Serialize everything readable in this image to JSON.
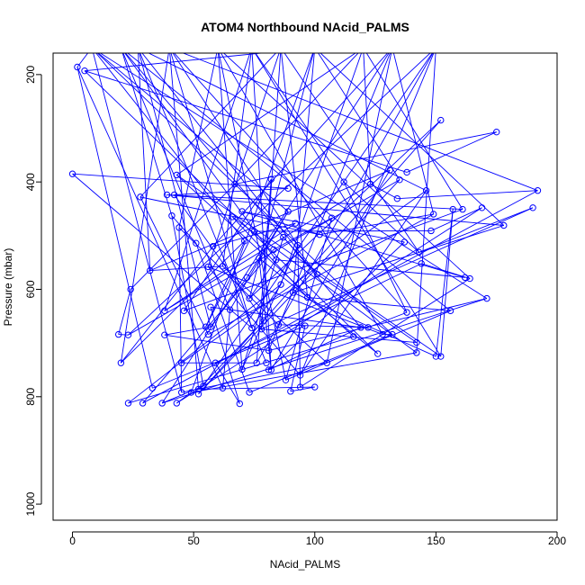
{
  "chart_data": {
    "type": "scatter",
    "title": "ATOM4 Northbound NAcid_PALMS",
    "xlabel": "NAcid_PALMS",
    "ylabel": "Pressure (mbar)",
    "xlim": [
      -8,
      200
    ],
    "ylim": [
      1030,
      160
    ],
    "x_ticks": [
      0,
      50,
      100,
      150,
      200
    ],
    "y_ticks": [
      200,
      400,
      600,
      800,
      1000
    ],
    "x_tick_labels": [
      "0",
      "50",
      "100",
      "150",
      "200"
    ],
    "y_tick_labels": [
      "200",
      "400",
      "600",
      "800",
      "1000"
    ],
    "grid": false,
    "legend": "none",
    "colors": {
      "series": "#0000ff",
      "axis": "#000000",
      "background": "#ffffff"
    },
    "points": [
      [
        2,
        186
      ],
      [
        0,
        385
      ],
      [
        5,
        193
      ],
      [
        19,
        684
      ],
      [
        20,
        737
      ],
      [
        23,
        812
      ],
      [
        23,
        685
      ],
      [
        24,
        600
      ],
      [
        28,
        428
      ],
      [
        29,
        812
      ],
      [
        32,
        565
      ],
      [
        33,
        784
      ],
      [
        37,
        812
      ],
      [
        38,
        685
      ],
      [
        38,
        640
      ],
      [
        39,
        424
      ],
      [
        41,
        463
      ],
      [
        42,
        424
      ],
      [
        43,
        387
      ],
      [
        43,
        812
      ],
      [
        44,
        485
      ],
      [
        45,
        737
      ],
      [
        45,
        792
      ],
      [
        46,
        640
      ],
      [
        49,
        792
      ],
      [
        51,
        514
      ],
      [
        52,
        786
      ],
      [
        52,
        795
      ],
      [
        54,
        780
      ],
      [
        55,
        670
      ],
      [
        56,
        558
      ],
      [
        56,
        684
      ],
      [
        57,
        670
      ],
      [
        57,
        633
      ],
      [
        58,
        520
      ],
      [
        59,
        737
      ],
      [
        62,
        557
      ],
      [
        62,
        784
      ],
      [
        65,
        638
      ],
      [
        66,
        465
      ],
      [
        67,
        404
      ],
      [
        69,
        813
      ],
      [
        70,
        749
      ],
      [
        70,
        455
      ],
      [
        71,
        510
      ],
      [
        72,
        578
      ],
      [
        73,
        617
      ],
      [
        73,
        792
      ],
      [
        74,
        672
      ],
      [
        75,
        492
      ],
      [
        76,
        737
      ],
      [
        77,
        542
      ],
      [
        78,
        674
      ],
      [
        79,
        658
      ],
      [
        80,
        737
      ],
      [
        81,
        750
      ],
      [
        81,
        714
      ],
      [
        82,
        395
      ],
      [
        82,
        750
      ],
      [
        83,
        526
      ],
      [
        84,
        545
      ],
      [
        85,
        666
      ],
      [
        86,
        591
      ],
      [
        87,
        503
      ],
      [
        88,
        769
      ],
      [
        89,
        412
      ],
      [
        89,
        455
      ],
      [
        90,
        790
      ],
      [
        91,
        606
      ],
      [
        92,
        477
      ],
      [
        93,
        518
      ],
      [
        94,
        782
      ],
      [
        94,
        760
      ],
      [
        96,
        668
      ],
      [
        97,
        615
      ],
      [
        100,
        782
      ],
      [
        101,
        572
      ],
      [
        102,
        498
      ],
      [
        105,
        737
      ],
      [
        107,
        467
      ],
      [
        112,
        400
      ],
      [
        116,
        688
      ],
      [
        119,
        671
      ],
      [
        122,
        671
      ],
      [
        123,
        404
      ],
      [
        126,
        720
      ],
      [
        128,
        684
      ],
      [
        131,
        378
      ],
      [
        132,
        684
      ],
      [
        134,
        431
      ],
      [
        135,
        396
      ],
      [
        137,
        512
      ],
      [
        138,
        643
      ],
      [
        138,
        382
      ],
      [
        142,
        718
      ],
      [
        142,
        699
      ],
      [
        143,
        531
      ],
      [
        144,
        552
      ],
      [
        146,
        416
      ],
      [
        148,
        491
      ],
      [
        149,
        460
      ],
      [
        150,
        725
      ],
      [
        152,
        725
      ],
      [
        152,
        285
      ],
      [
        156,
        640
      ],
      [
        157,
        451
      ],
      [
        161,
        451
      ],
      [
        162,
        578
      ],
      [
        164,
        580
      ],
      [
        169,
        448
      ],
      [
        171,
        617
      ],
      [
        175,
        307
      ],
      [
        178,
        481
      ],
      [
        190,
        448
      ],
      [
        192,
        416
      ]
    ]
  }
}
